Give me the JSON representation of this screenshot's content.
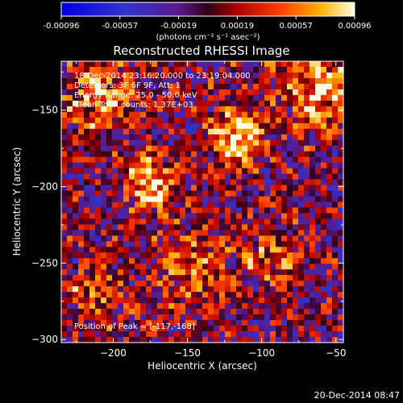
{
  "colorbar": {
    "ticks": [
      "-0.00096",
      "-0.00057",
      "-0.00019",
      "0.00019",
      "0.00057",
      "0.00096"
    ],
    "label": "(photons cm⁻² s⁻¹ asec⁻²)"
  },
  "title": "Reconstructed RHESSI Image",
  "annotations": {
    "time": "18-Dec-2014 23:16:20.000 to 23:19:04.000",
    "detectors": "Detectors: 3F 6F 9F, Att: 1",
    "energy": "Energy Range: 25.0 - 50.0 keV",
    "clean": "Clean Total counts: 1.37E+03",
    "peak": "Position of Peak = [-117,-168]"
  },
  "footer": {
    "timestamp": "20-Dec-2014 08:47"
  },
  "chart_data": {
    "type": "heatmap",
    "title": "Reconstructed RHESSI Image",
    "xlabel": "Heliocentric X (arcsec)",
    "ylabel": "Heliocentric Y (arcsec)",
    "xlim": [
      -235,
      -45
    ],
    "ylim": [
      -302,
      -118
    ],
    "x_ticks": [
      -200,
      -150,
      -100,
      -50
    ],
    "y_ticks": [
      -150,
      -200,
      -250,
      -300
    ],
    "x_tick_labels": [
      "−200",
      "−150",
      "−100",
      "−50"
    ],
    "y_tick_labels": [
      "−150",
      "−200",
      "−250",
      "−300"
    ],
    "value_range": [
      -0.00096,
      0.00096
    ],
    "colormap": "rhessi-blue-red-yellow-white",
    "sources": [
      {
        "x": -117,
        "y": -168,
        "amplitude": 0.00096,
        "sigma": 12
      },
      {
        "x": -175,
        "y": -198,
        "amplitude": 0.00085,
        "sigma": 12
      },
      {
        "x": -60,
        "y": -135,
        "amplitude": 0.00075,
        "sigma": 18
      },
      {
        "x": -210,
        "y": -140,
        "amplitude": 0.0007,
        "sigma": 16
      },
      {
        "x": -145,
        "y": -255,
        "amplitude": 0.00045,
        "sigma": 18
      },
      {
        "x": -95,
        "y": -245,
        "amplitude": 0.00045,
        "sigma": 14
      },
      {
        "x": -215,
        "y": -270,
        "amplitude": 0.0004,
        "sigma": 14
      }
    ]
  }
}
